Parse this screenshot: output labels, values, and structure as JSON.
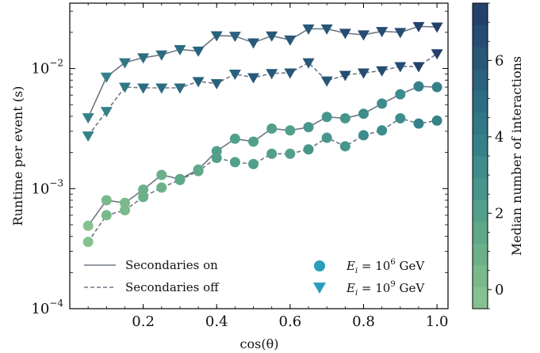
{
  "chart_data": {
    "type": "scatter",
    "xlabel": "cos(θ)",
    "ylabel": "Runtime per event (s)",
    "xlim": [
      0.0,
      1.03
    ],
    "ylim": [
      0.0001,
      0.035
    ],
    "yscale": "log",
    "x_ticks": [
      {
        "value": 0.2,
        "label": "0.2"
      },
      {
        "value": 0.4,
        "label": "0.4"
      },
      {
        "value": 0.6,
        "label": "0.6"
      },
      {
        "value": 0.8,
        "label": "0.8"
      },
      {
        "value": 1.0,
        "label": "1.0"
      }
    ],
    "y_ticks": [
      {
        "value": 0.0001,
        "base": "10",
        "exp": "−4"
      },
      {
        "value": 0.001,
        "base": "10",
        "exp": "−3"
      },
      {
        "value": 0.01,
        "base": "10",
        "exp": "−2"
      }
    ],
    "x": [
      0.05,
      0.1,
      0.15,
      0.2,
      0.25,
      0.3,
      0.35,
      0.4,
      0.45,
      0.5,
      0.55,
      0.6,
      0.65,
      0.7,
      0.75,
      0.8,
      0.85,
      0.9,
      0.95,
      1.0
    ],
    "series": [
      {
        "marker": "circle",
        "line": "solid",
        "values": [
          0.00049,
          0.0008,
          0.00076,
          0.00098,
          0.0013,
          0.0012,
          0.00144,
          0.00205,
          0.0026,
          0.00246,
          0.00316,
          0.00305,
          0.00325,
          0.00395,
          0.00385,
          0.0042,
          0.0051,
          0.0061,
          0.0071,
          0.007
        ],
        "interactions": [
          0,
          0.5,
          0.5,
          1,
          1.2,
          1.5,
          1.7,
          2,
          2,
          2,
          2.2,
          2.3,
          2.5,
          2.6,
          2.8,
          3,
          3,
          3.3,
          3.5,
          3.5
        ]
      },
      {
        "marker": "circle",
        "line": "dashed",
        "values": [
          0.00036,
          0.0006,
          0.00066,
          0.00085,
          0.00102,
          0.00118,
          0.0014,
          0.0018,
          0.00166,
          0.0016,
          0.00195,
          0.00195,
          0.00212,
          0.00265,
          0.00225,
          0.00278,
          0.00305,
          0.00385,
          0.00348,
          0.00368
        ],
        "interactions": [
          0,
          0.5,
          0.5,
          1,
          1.2,
          1.5,
          1.7,
          2,
          2,
          2,
          2.2,
          2.3,
          2.5,
          2.6,
          2.8,
          3,
          3,
          3.3,
          3.5,
          3.5
        ]
      },
      {
        "marker": "triangle",
        "line": "solid",
        "values": [
          0.0039,
          0.0085,
          0.0112,
          0.0123,
          0.013,
          0.0144,
          0.014,
          0.0188,
          0.0186,
          0.0164,
          0.0187,
          0.0173,
          0.0214,
          0.0214,
          0.0197,
          0.0191,
          0.0204,
          0.02,
          0.0224,
          0.0222
        ],
        "interactions": [
          3.5,
          4,
          4.5,
          4.8,
          5,
          5.2,
          5.3,
          5.5,
          5.6,
          5.8,
          5.9,
          6,
          6.1,
          6.2,
          6.4,
          6.5,
          6.6,
          6.8,
          7,
          7.2
        ]
      },
      {
        "marker": "triangle",
        "line": "dashed",
        "values": [
          0.00275,
          0.0044,
          0.007,
          0.0069,
          0.0069,
          0.0069,
          0.0078,
          0.0075,
          0.009,
          0.0084,
          0.0091,
          0.0092,
          0.0112,
          0.0079,
          0.0088,
          0.0092,
          0.0096,
          0.0104,
          0.0104,
          0.0133
        ],
        "interactions": [
          3.5,
          4,
          4.5,
          4.8,
          5,
          5.2,
          5.3,
          5.5,
          5.6,
          5.8,
          5.9,
          6,
          6.1,
          6.2,
          6.4,
          6.5,
          6.6,
          6.8,
          7,
          7.2
        ]
      }
    ],
    "line_color": "#6e7784",
    "legend": {
      "placement": "lower",
      "lines": [
        {
          "label": "Secondaries on",
          "style": "solid"
        },
        {
          "label": "Secondaries off",
          "style": "dashed"
        }
      ],
      "markers": [
        {
          "label_prefix": "E",
          "label_sub": "i",
          "label_mid": " = 10",
          "label_exp": "6",
          "label_unit": " GeV",
          "marker": "circle",
          "color": "#2a9dbd"
        },
        {
          "label_prefix": "E",
          "label_sub": "i",
          "label_mid": " = 10",
          "label_exp": "9",
          "label_unit": " GeV",
          "marker": "triangle",
          "color": "#2a9dbd"
        }
      ]
    },
    "colorbar": {
      "label": "Median number of interactions",
      "range": [
        -0.5,
        7.5
      ],
      "ticks": [
        {
          "value": 0,
          "label": "0"
        },
        {
          "value": 2,
          "label": "2"
        },
        {
          "value": 4,
          "label": "4"
        },
        {
          "value": 6,
          "label": "6"
        }
      ],
      "colors": [
        "#86c291",
        "#79b98c",
        "#6cb08a",
        "#5fa88a",
        "#529f8b",
        "#47968c",
        "#3e8c8c",
        "#368189",
        "#317785",
        "#2d6d81",
        "#2a627d",
        "#285778",
        "#264c73",
        "#24416c"
      ]
    }
  }
}
